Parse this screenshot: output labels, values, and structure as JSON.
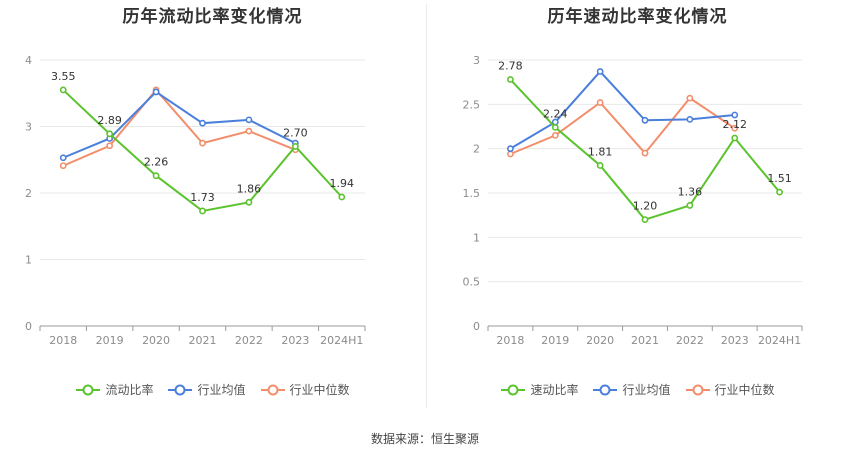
{
  "source_text": "数据来源：恒生聚源",
  "colors": {
    "company": "#5bc32d",
    "industry_avg": "#4a7fdc",
    "industry_median": "#f28e6b",
    "grid": "#e8e8e8",
    "axis": "#999999"
  },
  "chart_data": [
    {
      "type": "line",
      "title": "历年流动比率变化情况",
      "categories": [
        "2018",
        "2019",
        "2020",
        "2021",
        "2022",
        "2023",
        "2024H1"
      ],
      "ylim": [
        0,
        4
      ],
      "yticks": [
        "0",
        "1",
        "2",
        "3",
        "4"
      ],
      "grid": true,
      "legend_position": "bottom",
      "series": [
        {
          "name": "流动比率",
          "color": "#5bc32d",
          "values": [
            3.55,
            2.89,
            2.26,
            1.73,
            1.86,
            2.7,
            1.94
          ],
          "labels": [
            "3.55",
            "2.89",
            "2.26",
            "1.73",
            "1.86",
            "2.70",
            "1.94"
          ]
        },
        {
          "name": "行业均值",
          "color": "#4a7fdc",
          "values": [
            2.53,
            2.82,
            3.52,
            3.05,
            3.1,
            2.75,
            null
          ]
        },
        {
          "name": "行业中位数",
          "color": "#f28e6b",
          "values": [
            2.41,
            2.71,
            3.55,
            2.75,
            2.93,
            2.65,
            null
          ]
        }
      ]
    },
    {
      "type": "line",
      "title": "历年速动比率变化情况",
      "categories": [
        "2018",
        "2019",
        "2020",
        "2021",
        "2022",
        "2023",
        "2024H1"
      ],
      "ylim": [
        0,
        3
      ],
      "yticks": [
        "0",
        "0.5",
        "1",
        "1.5",
        "2",
        "2.5",
        "3"
      ],
      "grid": true,
      "legend_position": "bottom",
      "series": [
        {
          "name": "速动比率",
          "color": "#5bc32d",
          "values": [
            2.78,
            2.24,
            1.81,
            1.2,
            1.36,
            2.12,
            1.51
          ],
          "labels": [
            "2.78",
            "2.24",
            "1.81",
            "1.20",
            "1.36",
            "2.12",
            "1.51"
          ]
        },
        {
          "name": "行业均值",
          "color": "#4a7fdc",
          "values": [
            2.0,
            2.3,
            2.87,
            2.32,
            2.33,
            2.38,
            null
          ]
        },
        {
          "name": "行业中位数",
          "color": "#f28e6b",
          "values": [
            1.94,
            2.15,
            2.52,
            1.95,
            2.57,
            2.23,
            null
          ]
        }
      ]
    }
  ]
}
